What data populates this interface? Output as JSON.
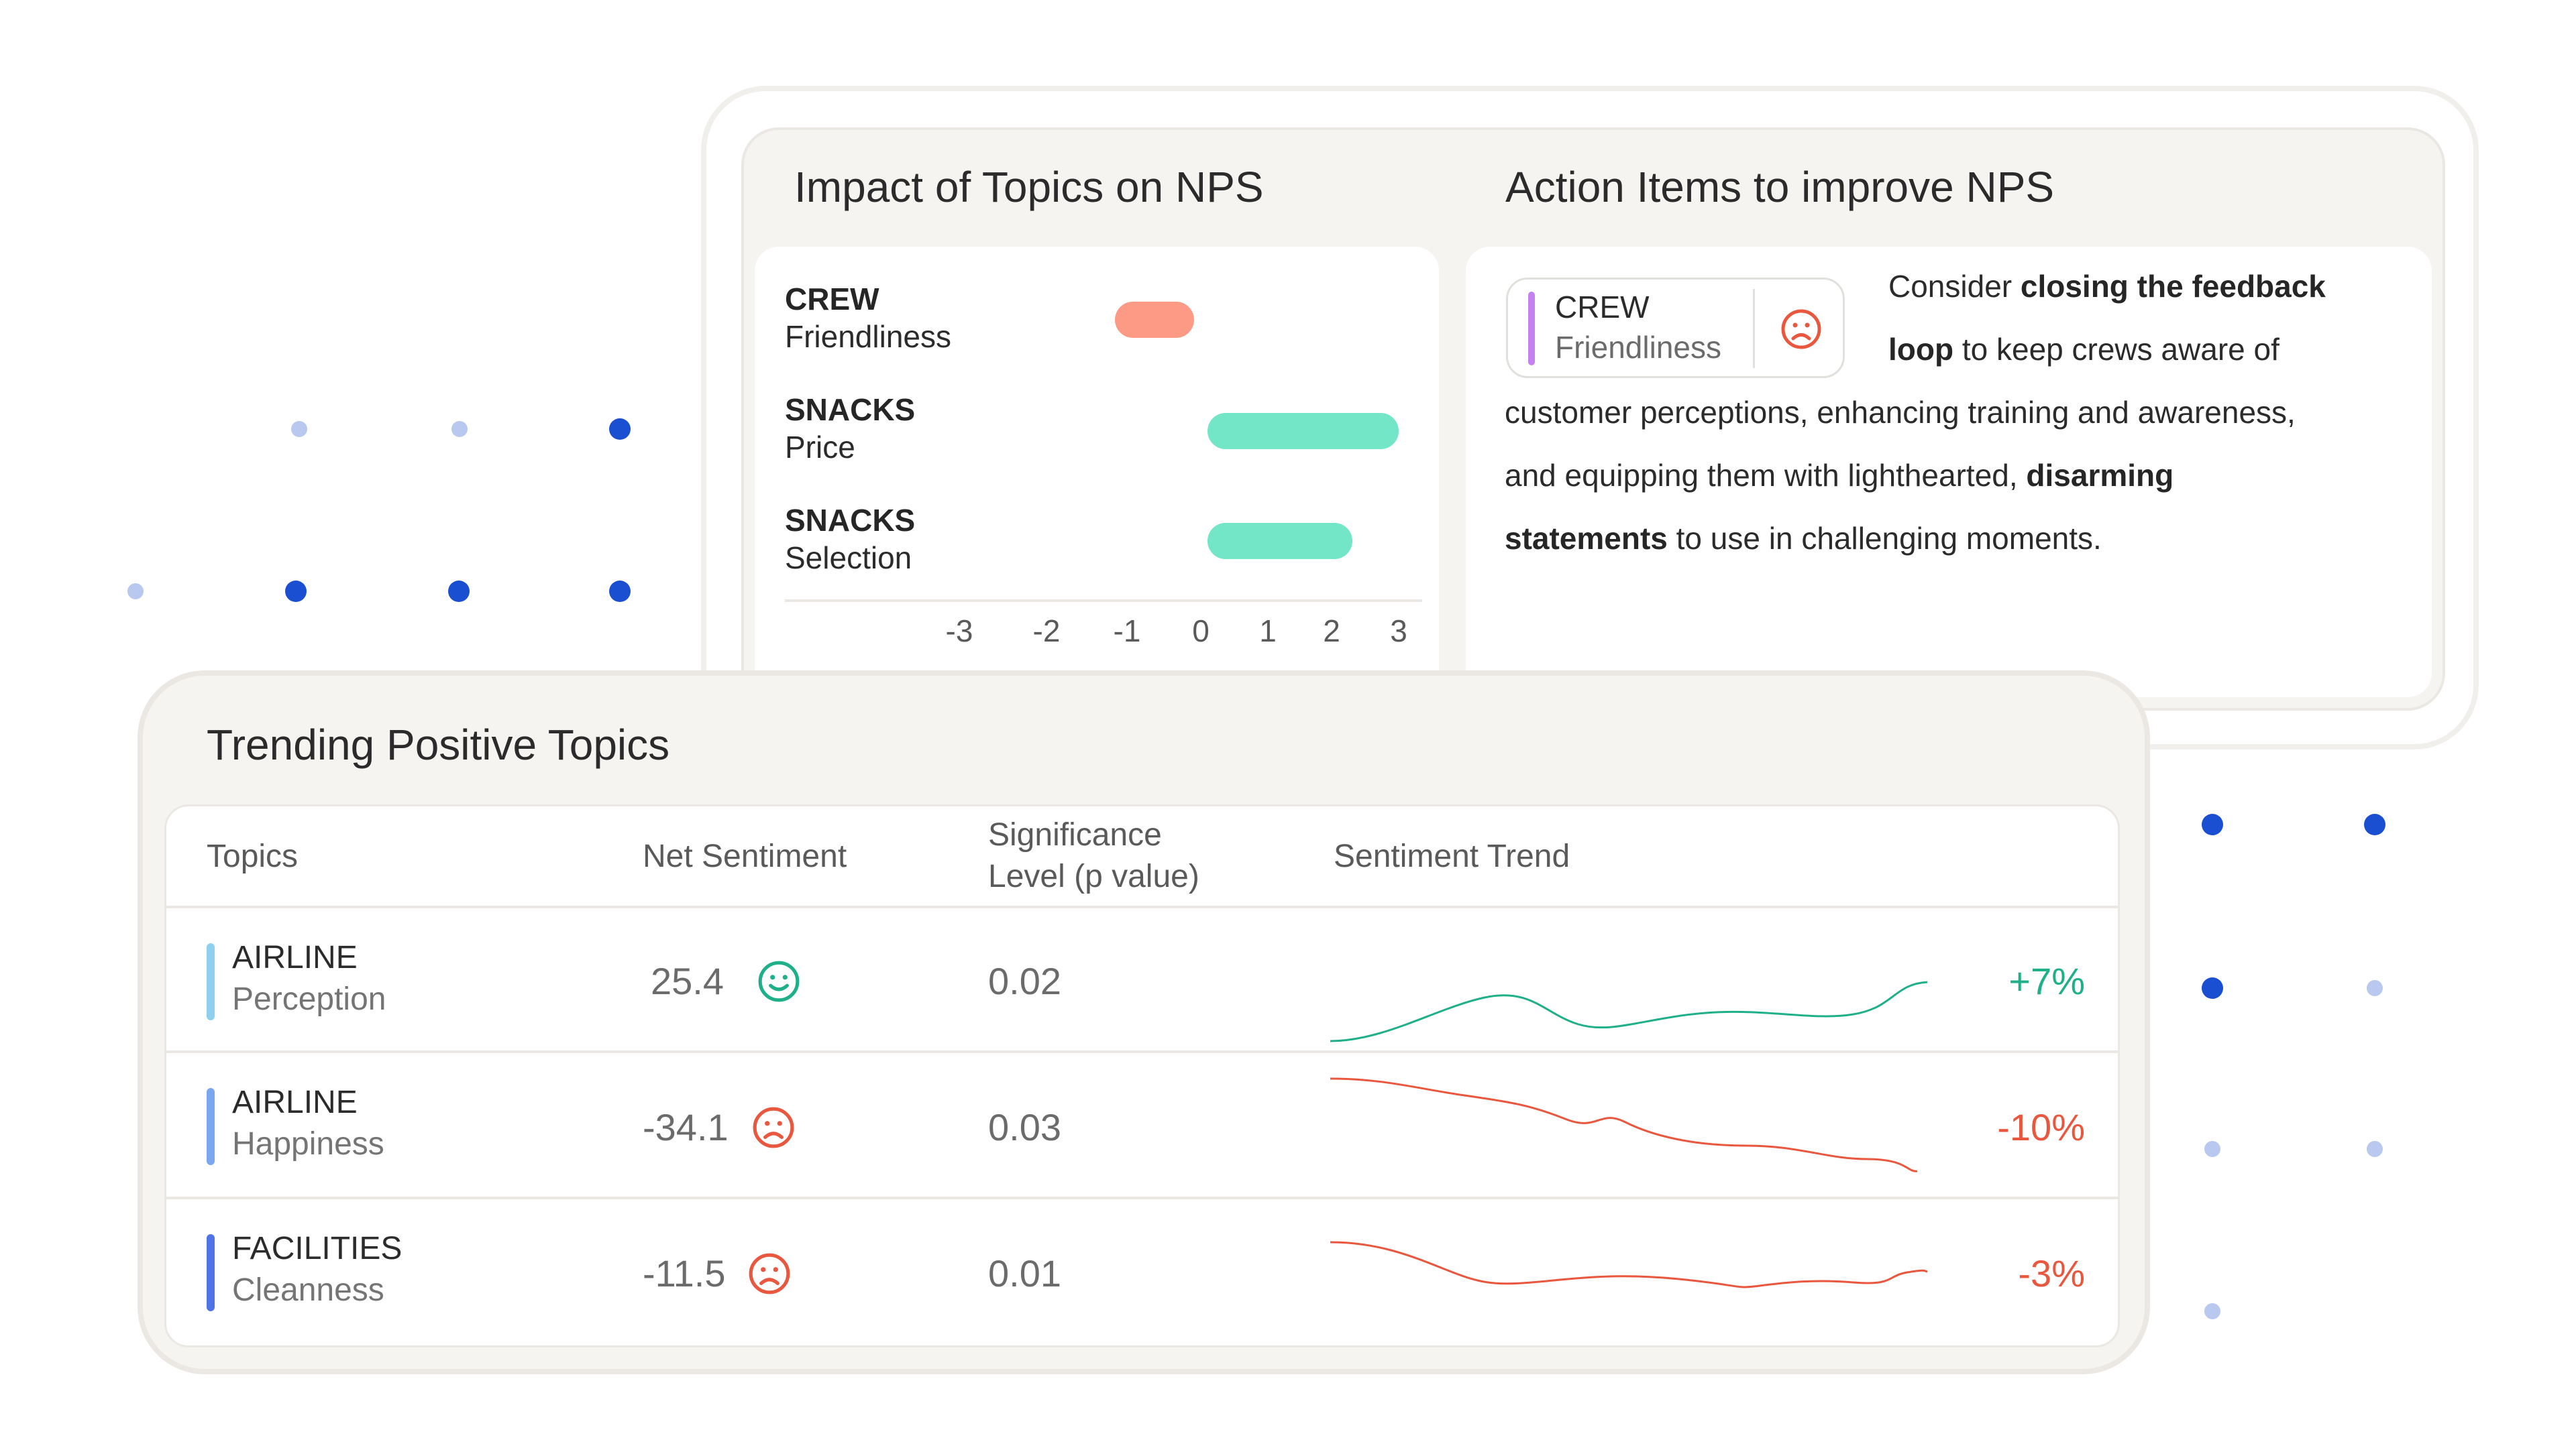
{
  "impact": {
    "title": "Impact of Topics on NPS",
    "topics": [
      {
        "main": "CREW",
        "sub": "Friendliness",
        "value": -1.3
      },
      {
        "main": "SNACKS",
        "sub": "Price",
        "value": 3.0
      },
      {
        "main": "SNACKS",
        "sub": "Selection",
        "value": 2.3
      }
    ],
    "ticks": [
      "-3",
      "-2",
      "-1",
      "0",
      "1",
      "2",
      "3"
    ],
    "colors": {
      "negative": "#fc9a86",
      "positive": "#72e6c7"
    }
  },
  "action": {
    "title": "Action Items to improve NPS",
    "tag_main": "CREW",
    "tag_sub": "Friendliness",
    "tag_icon": "frown-icon",
    "text": {
      "l1a": "Consider ",
      "l1b": "closing the feedback",
      "l2a": "loop",
      "l2b": " to keep crews aware of",
      "l3": "customer perceptions, enhancing training and awareness,",
      "l4a": "and equipping them with lighthearted, ",
      "l4b": "disarming",
      "l5a": "statements",
      "l5b": " to use in challenging moments."
    }
  },
  "trending": {
    "title": "Trending Positive Topics",
    "headers": {
      "topics": "Topics",
      "net": "Net Sentiment",
      "sig1": "Significance",
      "sig2": "Level (p value)",
      "trend": "Sentiment Trend"
    },
    "rows": [
      {
        "main": "AIRLINE",
        "sub": "Perception",
        "net": "25.4",
        "sig": "0.02",
        "pct": "+7%",
        "mood": "smile-icon",
        "bar_color": "#8fd0f0",
        "color": "#1fb08a"
      },
      {
        "main": "AIRLINE",
        "sub": "Happiness",
        "net": "-34.1",
        "sig": "0.03",
        "pct": "-10%",
        "mood": "frown-icon",
        "bar_color": "#7ba7ef",
        "color": "#e8573e"
      },
      {
        "main": "FACILITIES",
        "sub": "Cleanness",
        "net": "-11.5",
        "sig": "0.01",
        "pct": "-3%",
        "mood": "frown-icon",
        "bar_color": "#4e74e6",
        "color": "#e8573e"
      }
    ]
  },
  "accent": {
    "dot_dark": "#1a4fd1",
    "dot_light": "#b8c8ef"
  }
}
